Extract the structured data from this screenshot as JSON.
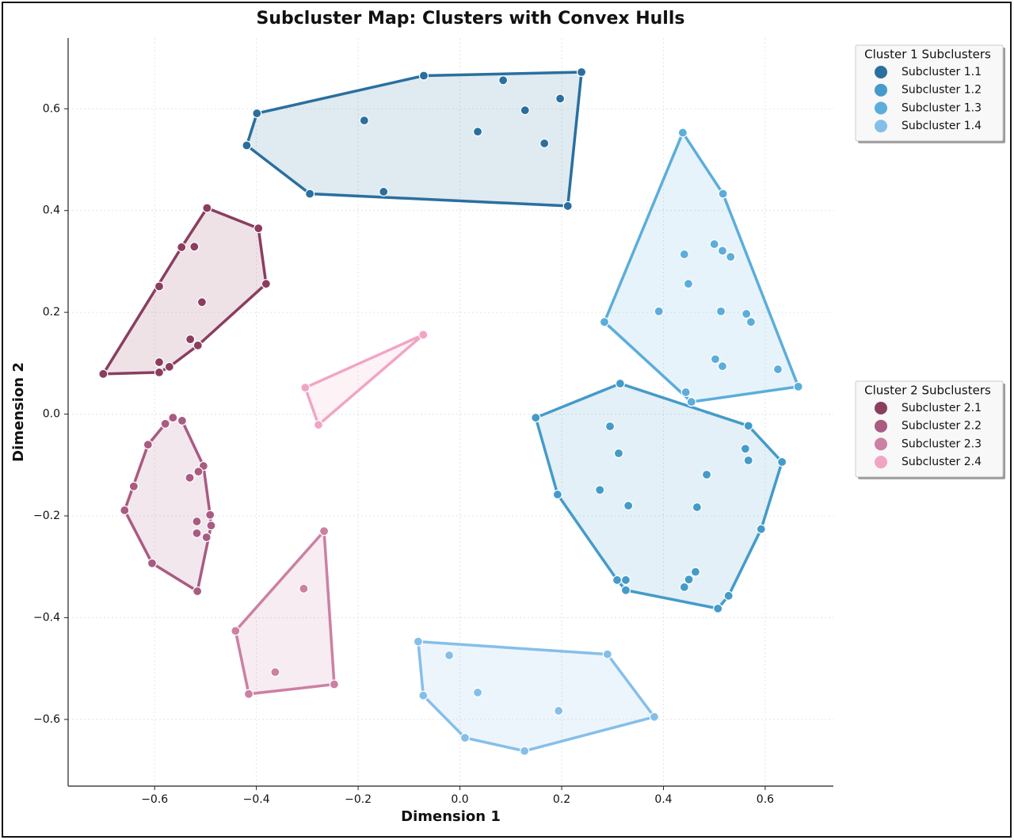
{
  "chart_data": {
    "type": "scatter",
    "title": "Subcluster Map: Clusters with Convex Hulls",
    "x_label": "Dimension 1",
    "y_label": "Dimension 2",
    "xlim": [
      -0.77,
      0.734
    ],
    "ylim": [
      -0.731,
      0.739
    ],
    "xticks": [
      {
        "value": -0.6,
        "label": "−0.6"
      },
      {
        "value": -0.4,
        "label": "−0.4"
      },
      {
        "value": -0.2,
        "label": "−0.2"
      },
      {
        "value": 0,
        "label": "0.0"
      },
      0.2,
      0.4,
      0.6
    ],
    "yticks": [
      {
        "value": -0.6,
        "label": "−0.6"
      },
      {
        "value": -0.4,
        "label": "−0.4"
      },
      {
        "value": -0.2,
        "label": "−0.2"
      },
      {
        "value": 0,
        "label": "0.0"
      },
      0.2,
      0.4,
      0.6
    ],
    "grid": true,
    "groups": [
      {
        "name": "Cluster 1 Subclusters",
        "series": [
          {
            "name": "Subcluster 1.1",
            "color": "#2a6f9f",
            "x": [
              -0.399,
              -0.419,
              -0.295,
              -0.071,
              0.085,
              0.239,
              0.212,
              -0.188,
              -0.15,
              0.035,
              0.128,
              0.197,
              0.166
            ],
            "y": [
              0.591,
              0.528,
              0.433,
              0.665,
              0.656,
              0.672,
              0.409,
              0.577,
              0.437,
              0.555,
              0.597,
              0.62,
              0.532
            ]
          },
          {
            "name": "Subcluster 1.2",
            "color": "#449bca",
            "x": [
              0.149,
              0.315,
              0.567,
              0.633,
              0.592,
              0.528,
              0.507,
              0.326,
              0.309,
              0.192,
              0.295,
              0.312,
              0.275,
              0.331,
              0.485,
              0.466,
              0.561,
              0.567,
              0.326,
              0.463,
              0.45,
              0.441
            ],
            "y": [
              -0.007,
              0.06,
              -0.023,
              -0.094,
              -0.226,
              -0.357,
              -0.382,
              -0.346,
              -0.326,
              -0.158,
              -0.024,
              -0.077,
              -0.149,
              -0.18,
              -0.119,
              -0.183,
              -0.068,
              -0.091,
              -0.326,
              -0.31,
              -0.325,
              -0.34
            ]
          },
          {
            "name": "Subcluster 1.3",
            "color": "#5caddb",
            "x": [
              0.438,
              0.517,
              0.665,
              0.455,
              0.444,
              0.284,
              0.441,
              0.5,
              0.516,
              0.532,
              0.449,
              0.391,
              0.513,
              0.563,
              0.572,
              0.502,
              0.516,
              0.625
            ],
            "y": [
              0.553,
              0.433,
              0.054,
              0.024,
              0.043,
              0.181,
              0.314,
              0.334,
              0.321,
              0.309,
              0.256,
              0.202,
              0.202,
              0.197,
              0.181,
              0.108,
              0.094,
              0.088
            ]
          },
          {
            "name": "Subcluster 1.4",
            "color": "#85bfe9",
            "x": [
              -0.082,
              0.29,
              0.382,
              0.127,
              0.01,
              -0.072,
              -0.021,
              0.035,
              0.194
            ],
            "y": [
              -0.447,
              -0.472,
              -0.595,
              -0.662,
              -0.636,
              -0.553,
              -0.474,
              -0.547,
              -0.583
            ]
          }
        ]
      },
      {
        "name": "Cluster 2 Subclusters",
        "series": [
          {
            "name": "Subcluster 2.1",
            "color": "#8b3d60",
            "x": [
              -0.497,
              -0.396,
              -0.381,
              -0.515,
              -0.571,
              -0.591,
              -0.701,
              -0.591,
              -0.547,
              -0.522,
              -0.507,
              -0.53,
              -0.591
            ],
            "y": [
              0.405,
              0.365,
              0.256,
              0.135,
              0.093,
              0.082,
              0.079,
              0.251,
              0.328,
              0.329,
              0.22,
              0.147,
              0.102
            ]
          },
          {
            "name": "Subcluster 2.2",
            "color": "#a95b82",
            "x": [
              -0.564,
              -0.546,
              -0.504,
              -0.491,
              -0.489,
              -0.498,
              -0.516,
              -0.605,
              -0.659,
              -0.641,
              -0.613,
              -0.579,
              -0.514,
              -0.531,
              -0.517,
              -0.517
            ],
            "y": [
              -0.007,
              -0.013,
              -0.102,
              -0.198,
              -0.219,
              -0.242,
              -0.348,
              -0.293,
              -0.189,
              -0.142,
              -0.06,
              -0.019,
              -0.113,
              -0.125,
              -0.211,
              -0.234
            ]
          },
          {
            "name": "Subcluster 2.3",
            "color": "#cc80a3",
            "x": [
              -0.267,
              -0.247,
              -0.415,
              -0.441,
              -0.307,
              -0.363
            ],
            "y": [
              -0.23,
              -0.531,
              -0.55,
              -0.426,
              -0.343,
              -0.507
            ]
          },
          {
            "name": "Subcluster 2.4",
            "color": "#f1a5c5",
            "x": [
              -0.072,
              -0.304,
              -0.278
            ],
            "y": [
              0.156,
              0.052,
              -0.021
            ]
          }
        ]
      }
    ]
  }
}
